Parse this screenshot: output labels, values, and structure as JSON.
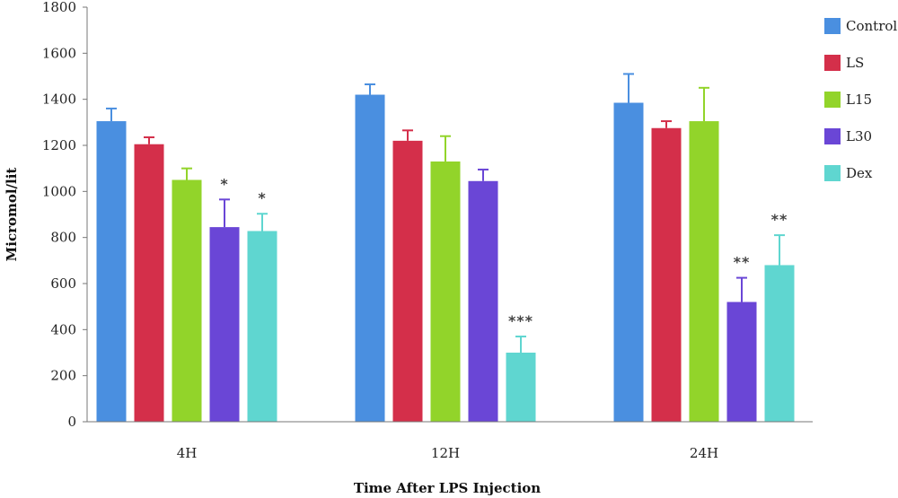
{
  "chart_data": {
    "type": "bar",
    "xlabel": "Time After LPS Injection",
    "ylabel": "Micromol/lit",
    "ylim": [
      0,
      1800
    ],
    "yticks": [
      0,
      200,
      400,
      600,
      800,
      1000,
      1200,
      1400,
      1600,
      1800
    ],
    "categories": [
      "4H",
      "12H",
      "24H"
    ],
    "grid": false,
    "legend_position": "right",
    "series": [
      {
        "name": "Control",
        "color": "#4a8fe0",
        "values": [
          1305,
          1420,
          1385
        ],
        "errors": [
          55,
          45,
          125
        ],
        "significance": [
          "",
          "",
          ""
        ]
      },
      {
        "name": "LS",
        "color": "#d42f4a",
        "values": [
          1205,
          1220,
          1275
        ],
        "errors": [
          30,
          45,
          30
        ],
        "significance": [
          "",
          "",
          ""
        ]
      },
      {
        "name": "L15",
        "color": "#92d42a",
        "values": [
          1050,
          1130,
          1305
        ],
        "errors": [
          50,
          110,
          145
        ],
        "significance": [
          "",
          "",
          ""
        ]
      },
      {
        "name": "L30",
        "color": "#6a46d6",
        "values": [
          845,
          1045,
          520
        ],
        "errors": [
          120,
          50,
          105
        ],
        "significance": [
          "*",
          "",
          "**"
        ]
      },
      {
        "name": "Dex",
        "color": "#5fd6d0",
        "values": [
          828,
          300,
          680
        ],
        "errors": [
          75,
          70,
          130
        ],
        "significance": [
          "*",
          "***",
          "**"
        ]
      }
    ]
  }
}
